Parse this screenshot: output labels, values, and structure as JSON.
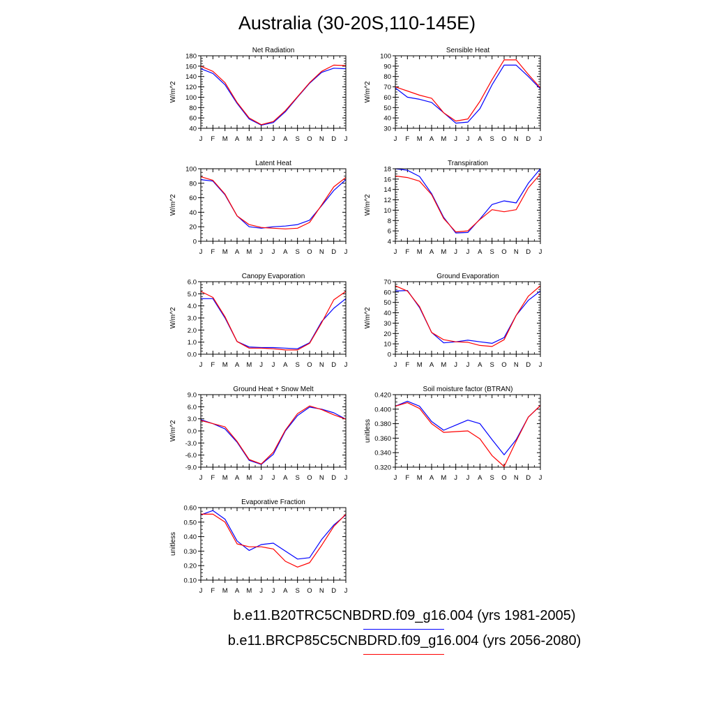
{
  "title": "Australia (30-20S,110-145E)",
  "legend": [
    {
      "label": "b.e11.B20TRC5CNBDRD.f09_g16.004 (yrs 1981-2005)",
      "color": "#0000ff"
    },
    {
      "label": "b.e11.BRCP85C5CNBDRD.f09_g16.004 (yrs 2056-2080)",
      "color": "#ff0000"
    }
  ],
  "chart_data": [
    {
      "type": "line",
      "title": "Net Radiation",
      "ylabel": "W/m^2",
      "x": [
        "J",
        "F",
        "M",
        "A",
        "M",
        "J",
        "J",
        "A",
        "S",
        "O",
        "N",
        "D",
        "J"
      ],
      "ylim": [
        40,
        180
      ],
      "yticks": [
        "40",
        "60",
        "80",
        "100",
        "120",
        "140",
        "160",
        "180"
      ],
      "series": [
        {
          "color": "#0000ff",
          "values": [
            155,
            146,
            124,
            88,
            58,
            46,
            51,
            72,
            100,
            127,
            148,
            156,
            155
          ]
        },
        {
          "color": "#ff0000",
          "values": [
            160,
            150,
            128,
            90,
            60,
            47,
            53,
            74,
            101,
            128,
            150,
            162,
            161
          ]
        }
      ]
    },
    {
      "type": "line",
      "title": "Sensible Heat",
      "ylabel": "W/m^2",
      "x": [
        "J",
        "F",
        "M",
        "A",
        "M",
        "J",
        "J",
        "A",
        "S",
        "O",
        "N",
        "D",
        "J"
      ],
      "ylim": [
        30,
        100
      ],
      "yticks": [
        "30",
        "40",
        "50",
        "60",
        "70",
        "80",
        "90",
        "100"
      ],
      "series": [
        {
          "color": "#0000ff",
          "values": [
            69,
            60,
            58,
            55,
            45,
            35,
            36,
            49,
            72,
            91,
            91,
            80,
            68
          ]
        },
        {
          "color": "#ff0000",
          "values": [
            70,
            66,
            62,
            59,
            45,
            37,
            39,
            56,
            77,
            96,
            96,
            82,
            69
          ]
        }
      ]
    },
    {
      "type": "line",
      "title": "Latent Heat",
      "ylabel": "W/m^2",
      "x": [
        "J",
        "F",
        "M",
        "A",
        "M",
        "J",
        "J",
        "A",
        "S",
        "O",
        "N",
        "D",
        "J"
      ],
      "ylim": [
        0,
        100
      ],
      "yticks": [
        "0",
        "20",
        "40",
        "60",
        "80",
        "100"
      ],
      "series": [
        {
          "color": "#0000ff",
          "values": [
            85,
            83,
            64,
            35,
            20,
            18,
            20,
            21,
            23,
            29,
            49,
            70,
            85
          ]
        },
        {
          "color": "#ff0000",
          "values": [
            89,
            84,
            65,
            35,
            23,
            19,
            18,
            17,
            18,
            26,
            50,
            75,
            88
          ]
        }
      ]
    },
    {
      "type": "line",
      "title": "Transpiration",
      "ylabel": "W/m^2",
      "x": [
        "J",
        "F",
        "M",
        "A",
        "M",
        "J",
        "J",
        "A",
        "S",
        "O",
        "N",
        "D",
        "J"
      ],
      "ylim": [
        4,
        18
      ],
      "yticks": [
        "4",
        "6",
        "8",
        "10",
        "12",
        "14",
        "16",
        "18"
      ],
      "series": [
        {
          "color": "#0000ff",
          "values": [
            18,
            17.7,
            16.5,
            13.2,
            8.6,
            5.6,
            5.7,
            8.3,
            11.1,
            11.8,
            11.4,
            15.2,
            18
          ]
        },
        {
          "color": "#ff0000",
          "values": [
            16.6,
            16.3,
            15.6,
            13,
            8.4,
            5.8,
            6,
            8.2,
            10.1,
            9.7,
            10.1,
            14.3,
            17
          ]
        }
      ]
    },
    {
      "type": "line",
      "title": "Canopy Evaporation",
      "ylabel": "W/m^2",
      "x": [
        "J",
        "F",
        "M",
        "A",
        "M",
        "J",
        "J",
        "A",
        "S",
        "O",
        "N",
        "D",
        "J"
      ],
      "ylim": [
        0,
        6
      ],
      "yticks": [
        "0.0",
        "1.0",
        "2.0",
        "3.0",
        "4.0",
        "5.0",
        "6.0"
      ],
      "series": [
        {
          "color": "#0000ff",
          "values": [
            4.6,
            4.6,
            3.0,
            1.05,
            0.6,
            0.55,
            0.55,
            0.5,
            0.45,
            0.95,
            2.7,
            3.8,
            4.6
          ]
        },
        {
          "color": "#ff0000",
          "values": [
            5.2,
            4.7,
            3.1,
            1.05,
            0.5,
            0.5,
            0.45,
            0.35,
            0.35,
            0.9,
            2.6,
            4.5,
            5.2
          ]
        }
      ]
    },
    {
      "type": "line",
      "title": "Ground Evaporation",
      "ylabel": "W/m^2",
      "x": [
        "J",
        "F",
        "M",
        "A",
        "M",
        "J",
        "J",
        "A",
        "S",
        "O",
        "N",
        "D",
        "J"
      ],
      "ylim": [
        0,
        70
      ],
      "yticks": [
        "0",
        "10",
        "20",
        "30",
        "40",
        "50",
        "60",
        "70"
      ],
      "series": [
        {
          "color": "#0000ff",
          "values": [
            61,
            61.5,
            45,
            21,
            11,
            12,
            13.5,
            12,
            10.5,
            16,
            37.5,
            52,
            61
          ]
        },
        {
          "color": "#ff0000",
          "values": [
            66,
            61,
            46,
            21,
            14,
            12,
            11.5,
            8.5,
            7.5,
            14,
            37.5,
            56,
            66
          ]
        }
      ]
    },
    {
      "type": "line",
      "title": "Ground Heat + Snow Melt",
      "ylabel": "W/m^2",
      "x": [
        "J",
        "F",
        "M",
        "A",
        "M",
        "J",
        "J",
        "A",
        "S",
        "O",
        "N",
        "D",
        "J"
      ],
      "ylim": [
        -9,
        9
      ],
      "yticks": [
        "-9.0",
        "-6.0",
        "-3.0",
        "0.0",
        "3.0",
        "6.0",
        "9.0"
      ],
      "series": [
        {
          "color": "#0000ff",
          "values": [
            2.8,
            1.8,
            0.5,
            -2.8,
            -7.3,
            -8.3,
            -5.8,
            0,
            3.8,
            5.9,
            5.4,
            4.5,
            2.9
          ]
        },
        {
          "color": "#ff0000",
          "values": [
            2.6,
            1.8,
            1.0,
            -2.6,
            -7.1,
            -8.2,
            -5.3,
            0.2,
            4.3,
            6.2,
            5.3,
            4.0,
            2.9
          ]
        }
      ]
    },
    {
      "type": "line",
      "title": "Soil moisture factor (BTRAN)",
      "ylabel": "unitless",
      "x": [
        "J",
        "F",
        "M",
        "A",
        "M",
        "J",
        "J",
        "A",
        "S",
        "O",
        "N",
        "D",
        "J"
      ],
      "ylim": [
        0.32,
        0.42
      ],
      "yticks": [
        "0.320",
        "0.340",
        "0.360",
        "0.380",
        "0.400",
        "0.420"
      ],
      "series": [
        {
          "color": "#0000ff",
          "values": [
            0.404,
            0.411,
            0.404,
            0.383,
            0.371,
            0.378,
            0.385,
            0.38,
            0.358,
            0.337,
            0.358,
            0.389,
            0.405
          ]
        },
        {
          "color": "#ff0000",
          "values": [
            0.404,
            0.409,
            0.401,
            0.38,
            0.368,
            0.369,
            0.37,
            0.359,
            0.336,
            0.321,
            0.356,
            0.389,
            0.405
          ]
        }
      ]
    },
    {
      "type": "line",
      "title": "Evaporative Fraction",
      "ylabel": "unitless",
      "x": [
        "J",
        "F",
        "M",
        "A",
        "M",
        "J",
        "J",
        "A",
        "S",
        "O",
        "N",
        "D",
        "J"
      ],
      "ylim": [
        0.1,
        0.6
      ],
      "yticks": [
        "0.10",
        "0.20",
        "0.30",
        "0.40",
        "0.50",
        "0.60"
      ],
      "series": [
        {
          "color": "#0000ff",
          "values": [
            0.55,
            0.58,
            0.52,
            0.37,
            0.305,
            0.345,
            0.355,
            0.3,
            0.245,
            0.255,
            0.38,
            0.48,
            0.55
          ]
        },
        {
          "color": "#ff0000",
          "values": [
            0.555,
            0.555,
            0.5,
            0.35,
            0.33,
            0.33,
            0.315,
            0.23,
            0.19,
            0.22,
            0.34,
            0.47,
            0.555
          ]
        }
      ]
    }
  ]
}
